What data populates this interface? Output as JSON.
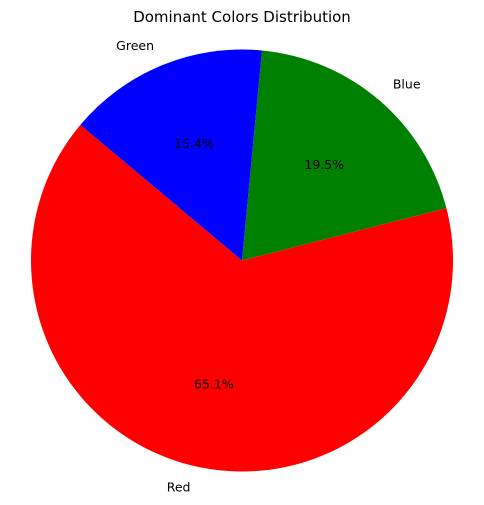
{
  "chart_data": {
    "type": "pie",
    "title": "Dominant Colors Distribution",
    "slices": [
      {
        "label": "Red",
        "value": 65.1,
        "pct_text": "65.1%",
        "color": "#ff0000"
      },
      {
        "label": "Blue",
        "value": 19.5,
        "pct_text": "19.5%",
        "color": "#008000"
      },
      {
        "label": "Green",
        "value": 15.4,
        "pct_text": "15.4%",
        "color": "#0000ff"
      }
    ],
    "start_angle_deg": 140,
    "direction": "counterclockwise",
    "legend": "none"
  }
}
